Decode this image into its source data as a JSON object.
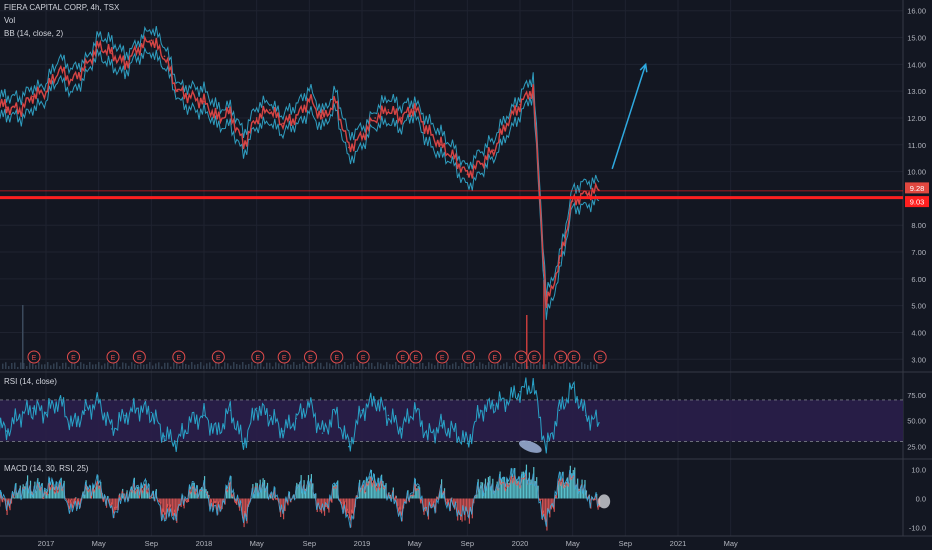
{
  "header": {
    "symbol": "FIERA CAPITAL CORP, 4h, TSX",
    "vol_label": "Vol",
    "bb_label": "BB (14, close, 2)",
    "rsi_label": "RSI (14, close)",
    "macd_label": "MACD (14, 30, RSI, 25)"
  },
  "colors": {
    "background": "#131722",
    "grid": "#1f2330",
    "price": "#d64545",
    "bands": "#2f9dbf",
    "support_line": "#ff1f1f",
    "rsi_line": "#29a2c7",
    "rsi_band": "#2a1e4a",
    "macd_up": "#5fd3df",
    "macd_down": "#e05757",
    "arrow": "#2ea9e0",
    "badge": "#e24c4c"
  },
  "chart_data": [
    {
      "type": "line",
      "pane": "price",
      "title": "FIERA CAPITAL CORP, 4h, TSX",
      "y_axis_ticks": [
        "16.00",
        "15.00",
        "14.00",
        "13.00",
        "12.00",
        "11.00",
        "10.00",
        "9.00",
        "8.00",
        "7.00",
        "6.00",
        "5.00",
        "4.00",
        "3.00"
      ],
      "ylim": [
        2.6,
        16.4
      ],
      "x_axis_ticks": [
        "2017",
        "May",
        "Sep",
        "2018",
        "May",
        "Sep",
        "2019",
        "May",
        "Sep",
        "2020",
        "May",
        "Sep",
        "2021",
        "May"
      ],
      "price_labels": [
        {
          "value": 9.28,
          "text": "9.28"
        },
        {
          "value": 9.03,
          "text": "9.03"
        }
      ],
      "horizontal_line": 9.03,
      "series": [
        {
          "points": [
            [
              "2016-09",
              12.6
            ],
            [
              "2016-10",
              12.4
            ],
            [
              "2016-11",
              12.3
            ],
            [
              "2016-12",
              12.8
            ],
            [
              "2017-01",
              13.0
            ],
            [
              "2017-02",
              13.8
            ],
            [
              "2017-03",
              13.4
            ],
            [
              "2017-04",
              13.9
            ],
            [
              "2017-05",
              14.7
            ],
            [
              "2017-06",
              14.4
            ],
            [
              "2017-07",
              14.0
            ],
            [
              "2017-08",
              14.6
            ],
            [
              "2017-09",
              14.9
            ],
            [
              "2017-10",
              14.3
            ],
            [
              "2017-11",
              13.0
            ],
            [
              "2017-12",
              12.8
            ],
            [
              "2018-01",
              12.6
            ],
            [
              "2018-02",
              12.0
            ],
            [
              "2018-03",
              12.2
            ],
            [
              "2018-04",
              11.0
            ],
            [
              "2018-05",
              12.0
            ],
            [
              "2018-06",
              12.3
            ],
            [
              "2018-07",
              11.8
            ],
            [
              "2018-08",
              12.0
            ],
            [
              "2018-09",
              12.7
            ],
            [
              "2018-10",
              12.0
            ],
            [
              "2018-11",
              12.6
            ],
            [
              "2018-12",
              10.9
            ],
            [
              "2019-01",
              11.3
            ],
            [
              "2019-02",
              12.0
            ],
            [
              "2019-03",
              12.3
            ],
            [
              "2019-04",
              12.0
            ],
            [
              "2019-05",
              12.4
            ],
            [
              "2019-06",
              11.5
            ],
            [
              "2019-07",
              11.0
            ],
            [
              "2019-08",
              10.5
            ],
            [
              "2019-09",
              9.9
            ],
            [
              "2019-10",
              10.3
            ],
            [
              "2019-11",
              10.8
            ],
            [
              "2019-12",
              11.8
            ],
            [
              "2020-01",
              12.5
            ],
            [
              "2020-02",
              13.1
            ],
            [
              "2020-03",
              5.0
            ],
            [
              "2020-04",
              6.6
            ],
            [
              "2020-05",
              8.9
            ],
            [
              "2020-06",
              9.2
            ],
            [
              "2020-07",
              9.3
            ]
          ]
        }
      ],
      "projection_arrow": {
        "from": [
          "2020-08",
          10.1
        ],
        "to": [
          "2020-11",
          14.0
        ]
      }
    },
    {
      "type": "line",
      "pane": "rsi",
      "title": "RSI (14, close)",
      "y_axis_ticks": [
        "75.00",
        "50.00",
        "25.00"
      ],
      "ylim": [
        15,
        95
      ],
      "band": [
        30,
        70
      ],
      "series": [
        {
          "points": [
            [
              "2016-09",
              48
            ],
            [
              "2016-10",
              40
            ],
            [
              "2016-11",
              55
            ],
            [
              "2016-12",
              62
            ],
            [
              "2017-01",
              58
            ],
            [
              "2017-02",
              70
            ],
            [
              "2017-03",
              45
            ],
            [
              "2017-04",
              60
            ],
            [
              "2017-05",
              68
            ],
            [
              "2017-06",
              42
            ],
            [
              "2017-07",
              55
            ],
            [
              "2017-08",
              62
            ],
            [
              "2017-09",
              58
            ],
            [
              "2017-10",
              35
            ],
            [
              "2017-11",
              30
            ],
            [
              "2017-12",
              50
            ],
            [
              "2018-01",
              55
            ],
            [
              "2018-02",
              38
            ],
            [
              "2018-03",
              60
            ],
            [
              "2018-04",
              28
            ],
            [
              "2018-05",
              62
            ],
            [
              "2018-06",
              55
            ],
            [
              "2018-07",
              40
            ],
            [
              "2018-08",
              52
            ],
            [
              "2018-09",
              66
            ],
            [
              "2018-10",
              38
            ],
            [
              "2018-11",
              58
            ],
            [
              "2018-12",
              25
            ],
            [
              "2019-01",
              60
            ],
            [
              "2019-02",
              70
            ],
            [
              "2019-03",
              55
            ],
            [
              "2019-04",
              42
            ],
            [
              "2019-05",
              62
            ],
            [
              "2019-06",
              35
            ],
            [
              "2019-07",
              45
            ],
            [
              "2019-08",
              40
            ],
            [
              "2019-09",
              28
            ],
            [
              "2019-10",
              60
            ],
            [
              "2019-11",
              65
            ],
            [
              "2019-12",
              70
            ],
            [
              "2020-01",
              78
            ],
            [
              "2020-02",
              85
            ],
            [
              "2020-03",
              22
            ],
            [
              "2020-04",
              60
            ],
            [
              "2020-05",
              82
            ],
            [
              "2020-06",
              55
            ],
            [
              "2020-07",
              48
            ]
          ]
        }
      ]
    },
    {
      "type": "bar",
      "pane": "macd",
      "title": "MACD (14, 30, RSI, 25)",
      "y_axis_ticks": [
        "10.0",
        "0.0",
        "-10.0"
      ],
      "ylim": [
        -13,
        13
      ],
      "series": [
        {
          "points": [
            [
              "2016-09",
              2
            ],
            [
              "2016-10",
              -3
            ],
            [
              "2016-11",
              4
            ],
            [
              "2016-12",
              5
            ],
            [
              "2017-01",
              3
            ],
            [
              "2017-02",
              6
            ],
            [
              "2017-03",
              -4
            ],
            [
              "2017-04",
              3
            ],
            [
              "2017-05",
              5
            ],
            [
              "2017-06",
              -5
            ],
            [
              "2017-07",
              2
            ],
            [
              "2017-08",
              4
            ],
            [
              "2017-09",
              3
            ],
            [
              "2017-10",
              -6
            ],
            [
              "2017-11",
              -5
            ],
            [
              "2017-12",
              3
            ],
            [
              "2018-01",
              4
            ],
            [
              "2018-02",
              -5
            ],
            [
              "2018-03",
              5
            ],
            [
              "2018-04",
              -8
            ],
            [
              "2018-05",
              6
            ],
            [
              "2018-06",
              3
            ],
            [
              "2018-07",
              -5
            ],
            [
              "2018-08",
              4
            ],
            [
              "2018-09",
              7
            ],
            [
              "2018-10",
              -7
            ],
            [
              "2018-11",
              5
            ],
            [
              "2018-12",
              -9
            ],
            [
              "2019-01",
              6
            ],
            [
              "2019-02",
              7
            ],
            [
              "2019-03",
              3
            ],
            [
              "2019-04",
              -5
            ],
            [
              "2019-05",
              5
            ],
            [
              "2019-06",
              -6
            ],
            [
              "2019-07",
              3
            ],
            [
              "2019-08",
              -4
            ],
            [
              "2019-09",
              -8
            ],
            [
              "2019-10",
              6
            ],
            [
              "2019-11",
              5
            ],
            [
              "2019-12",
              7
            ],
            [
              "2020-01",
              8
            ],
            [
              "2020-02",
              9
            ],
            [
              "2020-03",
              -10
            ],
            [
              "2020-04",
              6
            ],
            [
              "2020-05",
              9
            ],
            [
              "2020-06",
              2
            ],
            [
              "2020-07",
              -3
            ]
          ]
        }
      ]
    }
  ]
}
